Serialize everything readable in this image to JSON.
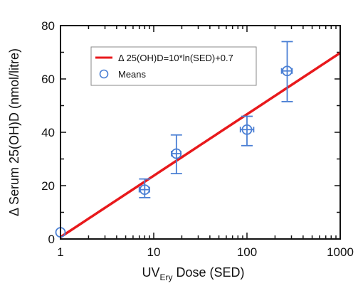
{
  "chart_data": {
    "type": "scatter",
    "xscale": "log",
    "xlim": [
      1,
      1000
    ],
    "ylim": [
      0,
      80
    ],
    "x_ticks": [
      1,
      10,
      100,
      1000
    ],
    "x_tick_labels": [
      "1",
      "10",
      "100",
      "1000"
    ],
    "y_ticks": [
      0,
      20,
      40,
      60,
      80
    ],
    "y_tick_labels": [
      "0",
      "20",
      "40",
      "60",
      "80"
    ],
    "xlabel": {
      "main": "UV",
      "subscript": "Ery",
      "rest": " Dose (SED)"
    },
    "ylabel": "Δ Serum 25(OH)D (nmol/litre)",
    "legend_position": "top-left",
    "series": [
      {
        "name": "Δ 25(OH)D=10*ln(SED)+0.7",
        "kind": "line",
        "color": "#e8191c",
        "formula": {
          "a": 10,
          "b": 0.7
        }
      },
      {
        "name": "Means",
        "kind": "points",
        "color": "#4a7fd4",
        "points": [
          {
            "x": 1,
            "y": 2.5,
            "y_low": 2.5,
            "y_high": 2.5,
            "x_low": 1,
            "x_high": 1
          },
          {
            "x": 8,
            "y": 18.5,
            "y_low": 15.5,
            "y_high": 22.5,
            "x_low": 7,
            "x_high": 9
          },
          {
            "x": 17.5,
            "y": 32,
            "y_low": 24.5,
            "y_high": 39,
            "x_low": 15.5,
            "x_high": 19.5
          },
          {
            "x": 100,
            "y": 41,
            "y_low": 35,
            "y_high": 46,
            "x_low": 85,
            "x_high": 118
          },
          {
            "x": 270,
            "y": 63,
            "y_low": 51.5,
            "y_high": 74,
            "x_low": 235,
            "x_high": 305
          }
        ]
      }
    ]
  }
}
